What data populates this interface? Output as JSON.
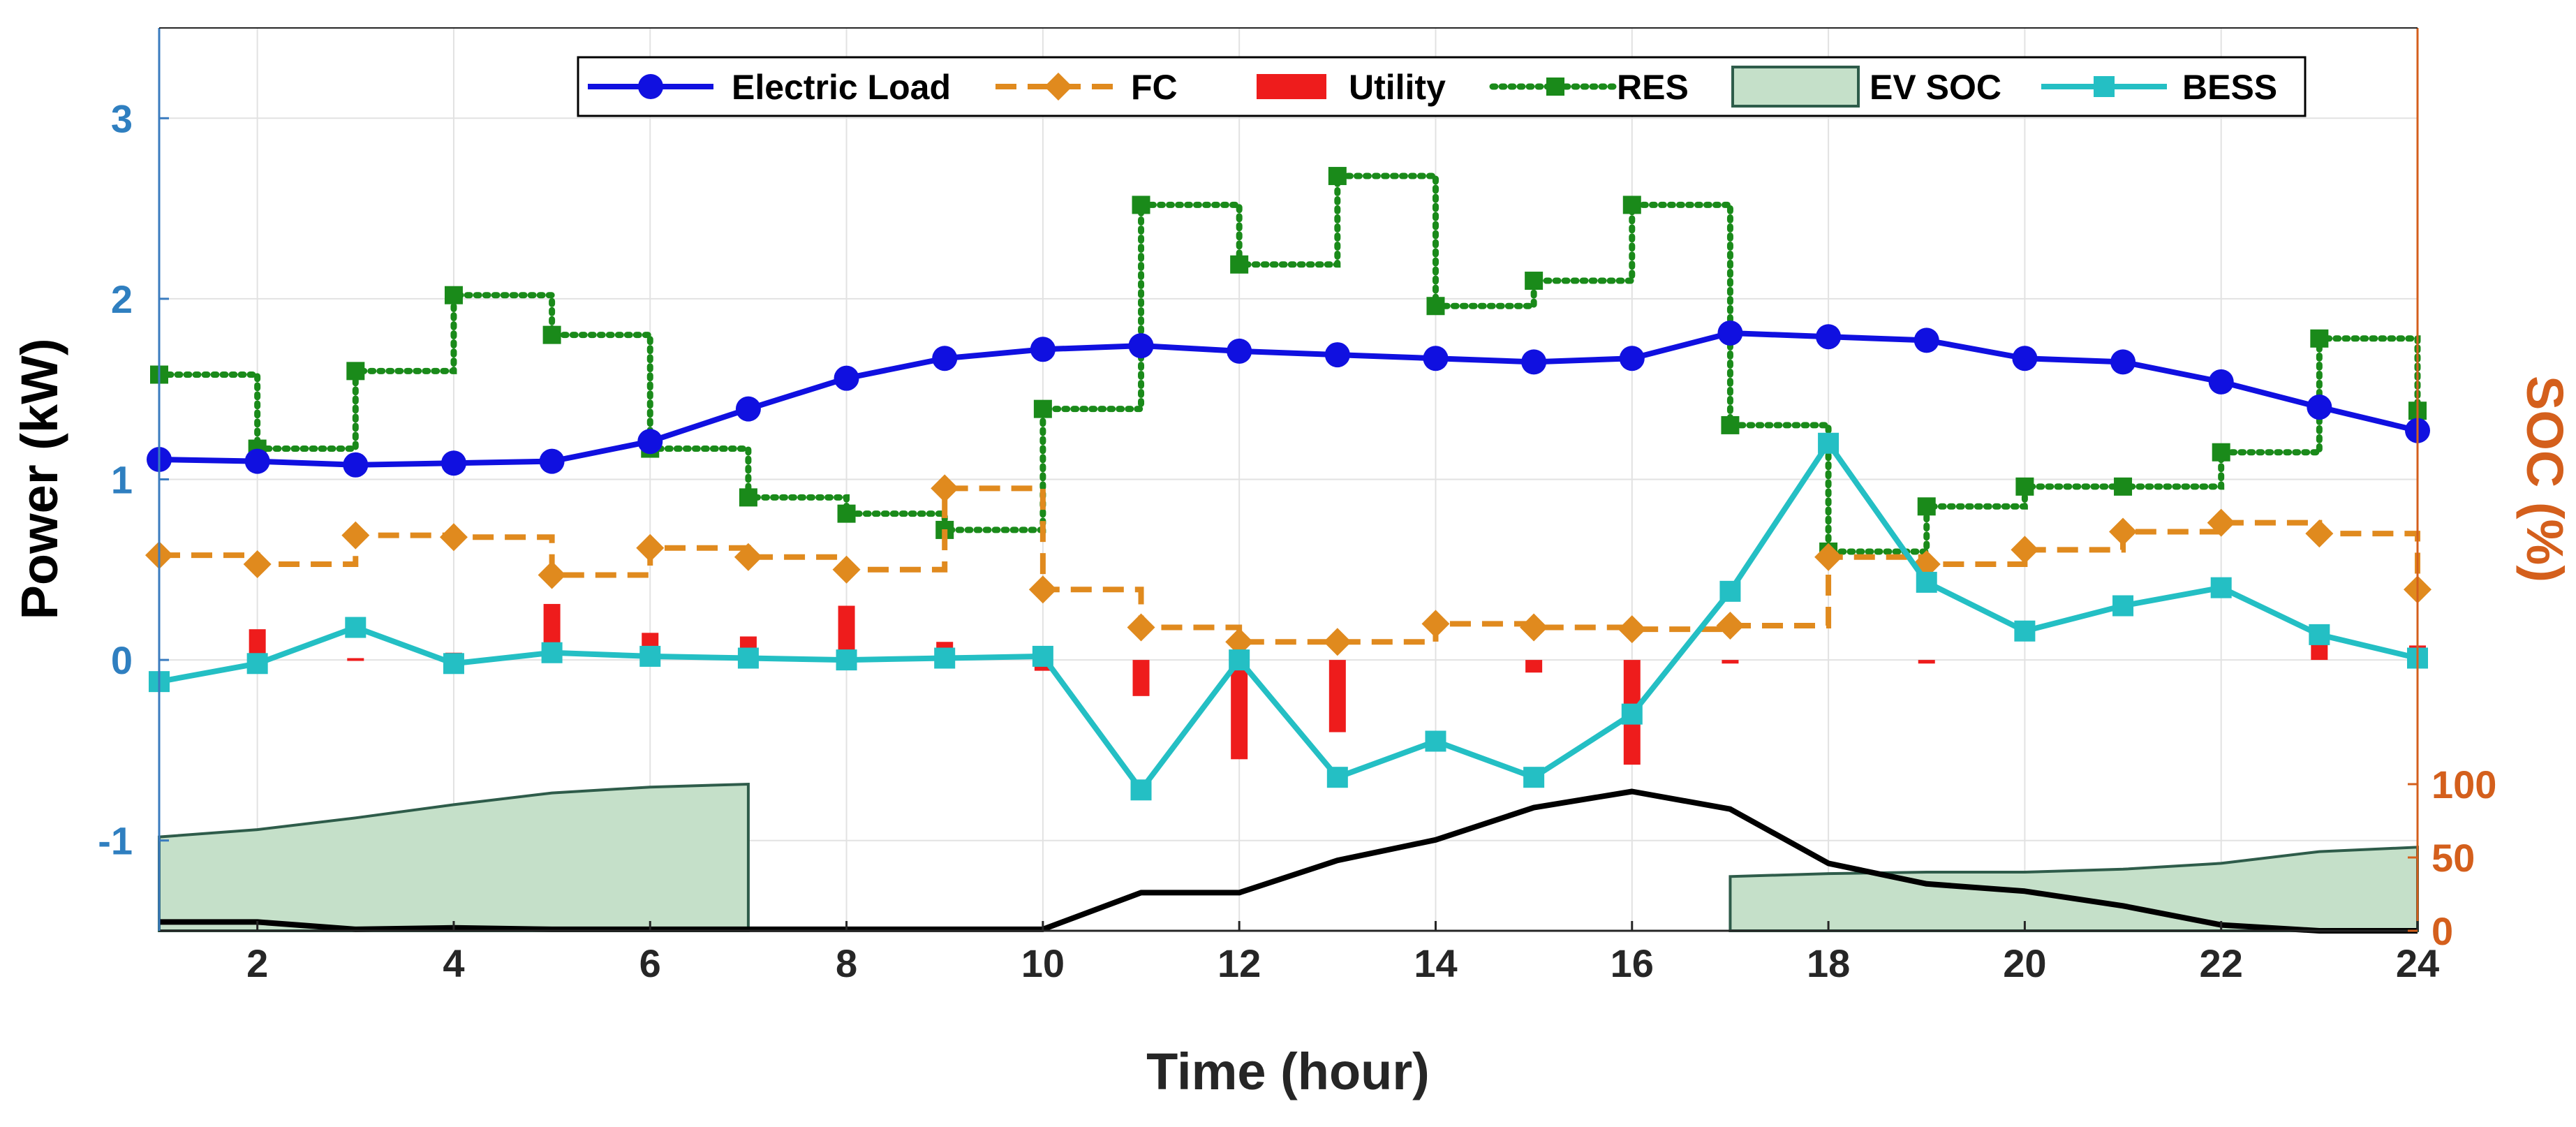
{
  "chart_data": {
    "type": "line",
    "xlabel": "Time (hour)",
    "ylabel": "Power (kW)",
    "y2label": "SOC (%)",
    "xlim": [
      1,
      24
    ],
    "ylim": [
      -1.5,
      3.5
    ],
    "soc_range": [
      0,
      100
    ],
    "x_ticks": [
      2,
      4,
      6,
      8,
      10,
      12,
      14,
      16,
      18,
      20,
      22,
      24
    ],
    "y_ticks": [
      -1,
      0,
      1,
      2,
      3
    ],
    "soc_ticks": [
      0,
      50,
      100
    ],
    "x": [
      1,
      2,
      3,
      4,
      5,
      6,
      7,
      8,
      9,
      10,
      11,
      12,
      13,
      14,
      15,
      16,
      17,
      18,
      19,
      20,
      21,
      22,
      23,
      24
    ],
    "legend_position": "top",
    "series": [
      {
        "name": "Electric Load",
        "style": "line-circle",
        "color": "#1010e0",
        "values": [
          1.11,
          1.1,
          1.08,
          1.09,
          1.1,
          1.21,
          1.39,
          1.56,
          1.67,
          1.72,
          1.74,
          1.71,
          1.69,
          1.67,
          1.65,
          1.67,
          1.81,
          1.79,
          1.77,
          1.67,
          1.65,
          1.54,
          1.4,
          1.27
        ]
      },
      {
        "name": "FC",
        "style": "dashed-stairs-diamond",
        "color": "#e08a1e",
        "values": [
          0.58,
          0.53,
          0.69,
          0.68,
          0.47,
          0.62,
          0.57,
          0.5,
          0.95,
          0.39,
          0.18,
          0.1,
          0.1,
          0.2,
          0.18,
          0.17,
          0.19,
          0.57,
          0.53,
          0.61,
          0.71,
          0.76,
          0.7,
          0.39
        ]
      },
      {
        "name": "Utility",
        "style": "bar",
        "color": "#ee1c1c",
        "values": [
          0,
          0.17,
          0.01,
          0.04,
          0.31,
          0.15,
          0.13,
          0.3,
          0.1,
          -0.06,
          -0.2,
          -0.55,
          -0.4,
          0,
          -0.07,
          -0.58,
          -0.02,
          0,
          -0.02,
          0,
          0,
          0,
          0.19,
          0.08
        ]
      },
      {
        "name": "RES",
        "style": "dotted-stairs-square",
        "color": "#1a8a1a",
        "values": [
          1.58,
          1.17,
          1.6,
          2.02,
          1.8,
          1.17,
          0.9,
          0.81,
          0.72,
          1.39,
          2.52,
          2.19,
          2.68,
          1.96,
          2.1,
          2.52,
          1.3,
          0.6,
          0.85,
          0.96,
          0.96,
          1.15,
          1.78,
          1.38
        ]
      },
      {
        "name": "EV SOC",
        "style": "area",
        "color": "#c5e0c9",
        "edge": "#2e5c4a",
        "segments": [
          {
            "x": [
              1,
              2,
              3,
              4,
              5,
              6,
              7
            ],
            "values": [
              64,
              69,
              77,
              86,
              94,
              98,
              100
            ]
          },
          {
            "x": [
              17,
              18,
              19,
              20,
              21,
              22,
              23,
              24
            ],
            "values": [
              37,
              39,
              40,
              40,
              42,
              46,
              54,
              57
            ]
          }
        ]
      },
      {
        "name": "BESS",
        "style": "line-square",
        "color": "#24bfc4",
        "values": [
          -0.12,
          -0.02,
          0.18,
          -0.02,
          0.04,
          0.02,
          0.01,
          0.0,
          0.01,
          0.02,
          -0.72,
          0.0,
          -0.65,
          -0.45,
          -0.65,
          -0.3,
          0.38,
          1.2,
          0.43,
          0.16,
          0.3,
          0.4,
          0.14,
          0.01
        ]
      },
      {
        "name": "SOC",
        "style": "line",
        "color": "#000000",
        "axis": "right",
        "values": [
          6,
          6,
          1,
          2,
          1,
          1,
          1,
          1,
          1,
          1,
          26,
          26,
          48,
          62,
          84,
          95,
          83,
          46,
          32,
          27,
          17,
          4,
          0,
          0
        ]
      }
    ]
  }
}
